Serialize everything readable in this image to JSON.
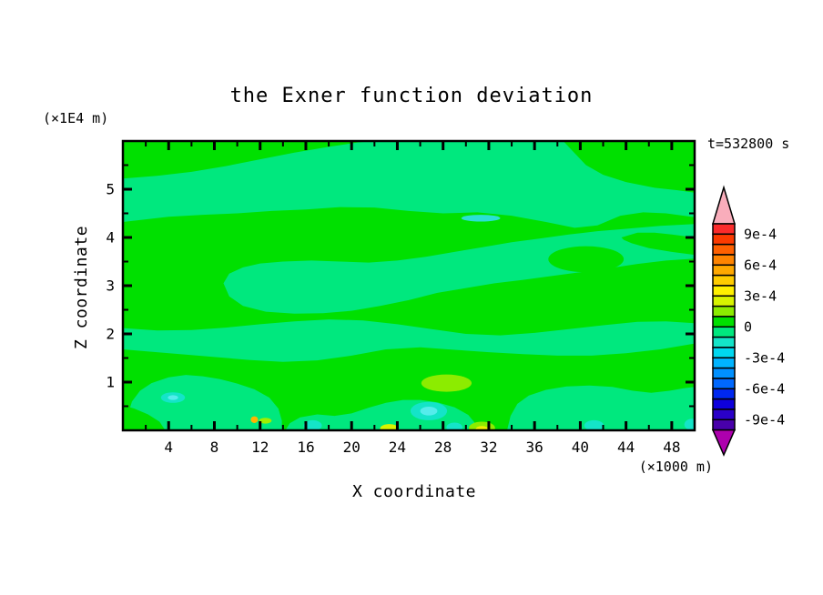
{
  "chart_data": {
    "type": "filled_contour",
    "title": "the Exner function deviation",
    "xlabel": "X coordinate",
    "ylabel": "Z coordinate",
    "x_unit_label": "(×1000 m)",
    "y_unit_label": "(×1E4 m)",
    "time_annotation": "t=532800 s",
    "x_range": [
      0,
      50
    ],
    "y_range": [
      0,
      6
    ],
    "x_major_ticks": [
      4,
      8,
      12,
      16,
      20,
      24,
      28,
      32,
      36,
      40,
      44,
      48
    ],
    "x_minor_ticks": [
      2,
      6,
      10,
      14,
      18,
      22,
      26,
      30,
      34,
      38,
      42,
      46
    ],
    "x_tick_labels": [
      "4",
      "8",
      "12",
      "16",
      "20",
      "24",
      "28",
      "32",
      "36",
      "40",
      "44",
      "48"
    ],
    "y_major_ticks": [
      1,
      2,
      3,
      4,
      5
    ],
    "y_minor_ticks": [
      0.5,
      1.5,
      2.5,
      3.5,
      4.5,
      5.5
    ],
    "y_tick_labels": [
      "1",
      "2",
      "3",
      "4",
      "5"
    ],
    "colorbar": {
      "orientation": "vertical",
      "contour_interval": 0.0001,
      "boundary_labels": [
        "9e-4",
        "6e-4",
        "3e-4",
        "0",
        "-3e-4",
        "-6e-4",
        "-9e-4"
      ],
      "labeled_boundary_index": [
        1,
        4,
        7,
        10,
        13,
        16,
        19
      ],
      "cell_colors": [
        "#FB2B2B",
        "#FC3A00",
        "#FF6000",
        "#FF8400",
        "#FFA800",
        "#FFCC00",
        "#FFF000",
        "#D8F400",
        "#8CEC00",
        "#00E000",
        "#00E87E",
        "#14E4C8",
        "#00D8F0",
        "#00B4FF",
        "#0090FF",
        "#0068FF",
        "#0028F0",
        "#0E00DC",
        "#2A00C8",
        "#4800AA"
      ],
      "over_arrow_color": "#F9ADBB",
      "under_arrow_color": "#AE00AE"
    },
    "field": {
      "background_color": "#00E000",
      "description": "Deviation field mostly within ±1e-4: wavy horizontal bands of slightly negative (spring green) values over slightly positive (green) background, with small stronger extrema near the surface.",
      "regions": [
        {
          "name": "upper-negative-band",
          "type": "polygon",
          "fill": "#00E87E",
          "pts": [
            [
              0,
              5.22
            ],
            [
              3,
              5.28
            ],
            [
              6,
              5.36
            ],
            [
              9,
              5.48
            ],
            [
              12,
              5.62
            ],
            [
              15,
              5.76
            ],
            [
              18,
              5.88
            ],
            [
              20.5,
              5.97
            ],
            [
              22,
              6
            ],
            [
              38.5,
              6
            ],
            [
              39.3,
              5.8
            ],
            [
              40.5,
              5.5
            ],
            [
              42,
              5.3
            ],
            [
              44,
              5.15
            ],
            [
              46.5,
              5.03
            ],
            [
              48.5,
              4.98
            ],
            [
              50,
              4.93
            ],
            [
              50,
              4.42
            ],
            [
              47.5,
              4.5
            ],
            [
              45.5,
              4.52
            ],
            [
              43.5,
              4.45
            ],
            [
              41.5,
              4.25
            ],
            [
              39.5,
              4.2
            ],
            [
              37,
              4.32
            ],
            [
              34,
              4.45
            ],
            [
              31,
              4.52
            ],
            [
              28,
              4.5
            ],
            [
              25,
              4.55
            ],
            [
              22,
              4.62
            ],
            [
              19,
              4.63
            ],
            [
              16,
              4.58
            ],
            [
              13,
              4.55
            ],
            [
              10,
              4.5
            ],
            [
              7,
              4.47
            ],
            [
              4,
              4.43
            ],
            [
              0,
              4.32
            ]
          ]
        },
        {
          "name": "middle-negative-band",
          "type": "polygon",
          "fill": "#00E87E",
          "pts": [
            [
              8.8,
              3.05
            ],
            [
              9.3,
              3.25
            ],
            [
              10.5,
              3.38
            ],
            [
              12,
              3.46
            ],
            [
              14,
              3.5
            ],
            [
              16.5,
              3.52
            ],
            [
              19,
              3.5
            ],
            [
              21.5,
              3.48
            ],
            [
              24,
              3.52
            ],
            [
              26.5,
              3.6
            ],
            [
              29,
              3.7
            ],
            [
              31.5,
              3.8
            ],
            [
              34,
              3.9
            ],
            [
              36.5,
              3.98
            ],
            [
              39,
              4.06
            ],
            [
              41.5,
              4.13
            ],
            [
              44,
              4.18
            ],
            [
              47,
              4.24
            ],
            [
              50,
              4.28
            ],
            [
              50,
              3.56
            ],
            [
              47.5,
              3.52
            ],
            [
              45,
              3.45
            ],
            [
              42.5,
              3.36
            ],
            [
              40,
              3.28
            ],
            [
              37.5,
              3.2
            ],
            [
              35,
              3.12
            ],
            [
              32.5,
              3.05
            ],
            [
              30,
              2.95
            ],
            [
              27.5,
              2.85
            ],
            [
              25,
              2.7
            ],
            [
              22.5,
              2.58
            ],
            [
              20,
              2.48
            ],
            [
              17.5,
              2.43
            ],
            [
              15,
              2.42
            ],
            [
              12.5,
              2.46
            ],
            [
              10.5,
              2.58
            ],
            [
              9.3,
              2.78
            ]
          ]
        },
        {
          "name": "lower-negative-band",
          "type": "polygon",
          "fill": "#00E87E",
          "pts": [
            [
              0,
              2.12
            ],
            [
              3,
              2.07
            ],
            [
              6,
              2.08
            ],
            [
              9,
              2.13
            ],
            [
              12,
              2.2
            ],
            [
              15,
              2.26
            ],
            [
              18,
              2.3
            ],
            [
              21,
              2.28
            ],
            [
              24,
              2.2
            ],
            [
              27,
              2.1
            ],
            [
              30,
              2.0
            ],
            [
              33,
              1.97
            ],
            [
              36,
              2.02
            ],
            [
              39,
              2.1
            ],
            [
              42,
              2.18
            ],
            [
              45,
              2.25
            ],
            [
              47.5,
              2.26
            ],
            [
              50,
              2.22
            ],
            [
              50,
              1.8
            ],
            [
              47,
              1.68
            ],
            [
              44,
              1.6
            ],
            [
              41,
              1.55
            ],
            [
              38,
              1.55
            ],
            [
              35,
              1.58
            ],
            [
              32,
              1.62
            ],
            [
              29,
              1.67
            ],
            [
              26,
              1.72
            ],
            [
              23,
              1.68
            ],
            [
              20,
              1.55
            ],
            [
              17,
              1.45
            ],
            [
              14,
              1.42
            ],
            [
              11,
              1.46
            ],
            [
              8,
              1.52
            ],
            [
              5,
              1.58
            ],
            [
              2,
              1.64
            ],
            [
              0,
              1.68
            ]
          ]
        },
        {
          "name": "bottom-left-negative-blob",
          "type": "polygon",
          "fill": "#00E87E",
          "pts": [
            [
              0.2,
              0
            ],
            [
              0.4,
              0.3
            ],
            [
              0.8,
              0.6
            ],
            [
              1.5,
              0.82
            ],
            [
              2.5,
              0.98
            ],
            [
              4,
              1.1
            ],
            [
              5.5,
              1.15
            ],
            [
              7,
              1.12
            ],
            [
              8.5,
              1.06
            ],
            [
              10,
              0.97
            ],
            [
              11.5,
              0.85
            ],
            [
              12.8,
              0.68
            ],
            [
              13.6,
              0.45
            ],
            [
              13.9,
              0.2
            ],
            [
              13.9,
              0
            ]
          ]
        },
        {
          "name": "bottom-middle-negative-strip",
          "type": "polygon",
          "fill": "#00E87E",
          "pts": [
            [
              14.2,
              0
            ],
            [
              14.6,
              0.15
            ],
            [
              15.5,
              0.27
            ],
            [
              17,
              0.33
            ],
            [
              18.5,
              0.3
            ],
            [
              20,
              0.35
            ],
            [
              21.5,
              0.47
            ],
            [
              23,
              0.57
            ],
            [
              24.5,
              0.63
            ],
            [
              26,
              0.63
            ],
            [
              27.5,
              0.58
            ],
            [
              29,
              0.48
            ],
            [
              30.2,
              0.32
            ],
            [
              30.8,
              0.15
            ],
            [
              31,
              0
            ]
          ]
        },
        {
          "name": "bottom-right-negative-region",
          "type": "polygon",
          "fill": "#00E87E",
          "pts": [
            [
              33.6,
              0
            ],
            [
              33.9,
              0.3
            ],
            [
              34.5,
              0.55
            ],
            [
              35.5,
              0.72
            ],
            [
              37,
              0.84
            ],
            [
              38.8,
              0.91
            ],
            [
              40.8,
              0.93
            ],
            [
              42.8,
              0.9
            ],
            [
              44.6,
              0.82
            ],
            [
              46.2,
              0.78
            ],
            [
              47.8,
              0.82
            ],
            [
              49,
              0.87
            ],
            [
              50,
              0.9
            ],
            [
              50,
              0
            ]
          ]
        },
        {
          "name": "corner-positive-wedge",
          "type": "polygon",
          "fill": "#00E000",
          "pts": [
            [
              0,
              0.52
            ],
            [
              1,
              0.45
            ],
            [
              2.2,
              0.33
            ],
            [
              3.2,
              0.18
            ],
            [
              3.7,
              0
            ],
            [
              0,
              0
            ]
          ]
        },
        {
          "name": "positive-island-in-band",
          "type": "ellipse",
          "fill": "#00E000",
          "c": [
            40.5,
            3.55
          ],
          "r": [
            3.3,
            0.27
          ]
        },
        {
          "name": "positive-tongue-right-edge",
          "type": "polygon",
          "fill": "#00E000",
          "pts": [
            [
              43.6,
              4.0
            ],
            [
              45,
              4.1
            ],
            [
              46.5,
              4.1
            ],
            [
              48,
              4.06
            ],
            [
              50,
              4.0
            ],
            [
              50,
              3.64
            ],
            [
              48,
              3.7
            ],
            [
              46,
              3.78
            ],
            [
              44.5,
              3.88
            ],
            [
              43.8,
              3.95
            ]
          ]
        },
        {
          "name": "cyan-sliver-mid-level",
          "type": "ellipse",
          "fill": "#2AE0D5",
          "c": [
            31.3,
            4.4
          ],
          "r": [
            1.7,
            0.07
          ]
        }
      ],
      "spots": [
        {
          "name": "turquoise-spot-1",
          "type": "ellipse",
          "fill": "#14E4C8",
          "c": [
            4.38,
            0.68
          ],
          "r": [
            1.05,
            0.11
          ]
        },
        {
          "name": "turquoise-spot-1-core",
          "type": "ellipse",
          "fill": "#55ECEC",
          "c": [
            4.38,
            0.68
          ],
          "r": [
            0.45,
            0.05
          ]
        },
        {
          "name": "turquoise-spot-2",
          "type": "ellipse",
          "fill": "#14E4C8",
          "c": [
            26.75,
            0.4
          ],
          "r": [
            1.6,
            0.19
          ]
        },
        {
          "name": "turquoise-spot-2-core",
          "type": "ellipse",
          "fill": "#55ECEC",
          "c": [
            26.75,
            0.4
          ],
          "r": [
            0.75,
            0.09
          ]
        },
        {
          "name": "turquoise-spot-3",
          "type": "ellipse",
          "fill": "#14E4C8",
          "c": [
            16.6,
            0.1
          ],
          "r": [
            0.8,
            0.11
          ]
        },
        {
          "name": "turquoise-spot-4",
          "type": "ellipse",
          "fill": "#14E4C8",
          "c": [
            29.0,
            0.06
          ],
          "r": [
            0.7,
            0.1
          ]
        },
        {
          "name": "turquoise-spot-5",
          "type": "ellipse",
          "fill": "#14E4C8",
          "c": [
            41.2,
            0.1
          ],
          "r": [
            0.85,
            0.11
          ]
        },
        {
          "name": "turquoise-spot-corner",
          "type": "ellipse",
          "fill": "#14E4C8",
          "c": [
            49.8,
            0.12
          ],
          "r": [
            0.7,
            0.12
          ]
        },
        {
          "name": "chartreuse-blob-main",
          "type": "ellipse",
          "fill": "#8CEC00",
          "c": [
            28.3,
            0.98
          ],
          "r": [
            2.2,
            0.18
          ]
        },
        {
          "name": "chartreuse-blob-bottom",
          "type": "ellipse",
          "fill": "#8CEC00",
          "c": [
            31.4,
            0.05
          ],
          "r": [
            1.15,
            0.13
          ]
        },
        {
          "name": "yellow-core-bottom",
          "type": "ellipse",
          "fill": "#F0F000",
          "c": [
            31.4,
            0.02
          ],
          "r": [
            0.55,
            0.07
          ]
        },
        {
          "name": "yellow-spot-bottom",
          "type": "ellipse",
          "fill": "#D8F400",
          "c": [
            23.3,
            0.04
          ],
          "r": [
            0.8,
            0.09
          ]
        },
        {
          "name": "chartreuse-dash",
          "type": "ellipse",
          "fill": "#A0EE00",
          "c": [
            12.45,
            0.2
          ],
          "r": [
            0.55,
            0.06
          ]
        },
        {
          "name": "orange-dot",
          "type": "ellipse",
          "fill": "#FFB400",
          "c": [
            11.5,
            0.22
          ],
          "r": [
            0.32,
            0.07
          ]
        }
      ]
    }
  }
}
